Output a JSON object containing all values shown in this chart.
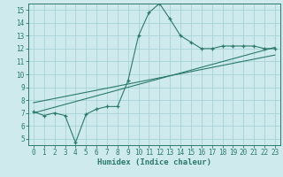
{
  "main_x": [
    0,
    1,
    2,
    3,
    4,
    5,
    6,
    7,
    8,
    9,
    10,
    11,
    12,
    13,
    14,
    15,
    16,
    17,
    18,
    19,
    20,
    21,
    22,
    23
  ],
  "main_y": [
    7.1,
    6.8,
    7.0,
    6.8,
    4.7,
    6.9,
    7.3,
    7.5,
    7.5,
    9.5,
    13.0,
    14.8,
    15.5,
    14.3,
    13.0,
    12.5,
    12.0,
    12.0,
    12.2,
    12.2,
    12.2,
    12.2,
    12.0,
    12.0
  ],
  "line1_x": [
    0,
    23
  ],
  "line1_y": [
    7.0,
    12.1
  ],
  "line2_x": [
    0,
    23
  ],
  "line2_y": [
    7.8,
    11.5
  ],
  "line_color": "#2a7a6a",
  "bg_color": "#ceeaec",
  "grid_color": "#a8d4d8",
  "axis_color": "#2a7a6a",
  "xlabel": "Humidex (Indice chaleur)",
  "xlim": [
    -0.5,
    23.5
  ],
  "ylim": [
    4.5,
    15.5
  ],
  "yticks": [
    5,
    6,
    7,
    8,
    9,
    10,
    11,
    12,
    13,
    14,
    15
  ],
  "xticks": [
    0,
    1,
    2,
    3,
    4,
    5,
    6,
    7,
    8,
    9,
    10,
    11,
    12,
    13,
    14,
    15,
    16,
    17,
    18,
    19,
    20,
    21,
    22,
    23
  ],
  "xlabel_fontsize": 6.5,
  "tick_fontsize": 5.5
}
